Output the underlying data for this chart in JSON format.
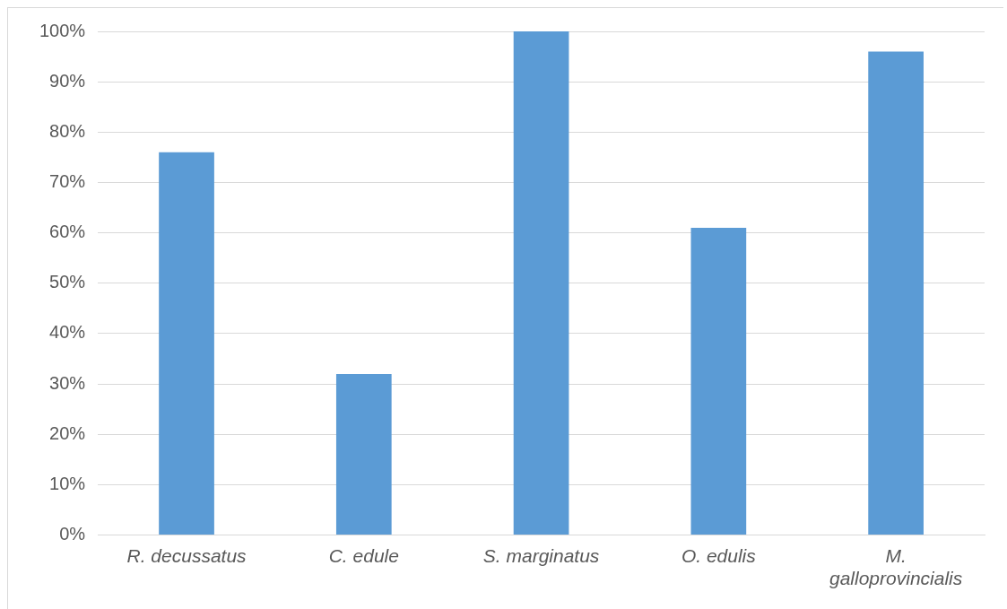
{
  "chart_data": {
    "type": "bar",
    "categories": [
      "R. decussatus",
      "C. edule",
      "S. marginatus",
      "O. edulis",
      "M. galloprovincialis"
    ],
    "values": [
      76,
      32,
      100,
      61,
      96
    ],
    "color": "#5b9bd5",
    "ylim": [
      0,
      100
    ],
    "yticks": [
      {
        "value": 0,
        "label": "0%"
      },
      {
        "value": 10,
        "label": "10%"
      },
      {
        "value": 20,
        "label": "20%"
      },
      {
        "value": 30,
        "label": "30%"
      },
      {
        "value": 40,
        "label": "40%"
      },
      {
        "value": 50,
        "label": "50%"
      },
      {
        "value": 60,
        "label": "60%"
      },
      {
        "value": 70,
        "label": "70%"
      },
      {
        "value": 80,
        "label": "80%"
      },
      {
        "value": 90,
        "label": "90%"
      },
      {
        "value": 100,
        "label": "100%"
      }
    ],
    "grid": "y",
    "legend": false
  }
}
